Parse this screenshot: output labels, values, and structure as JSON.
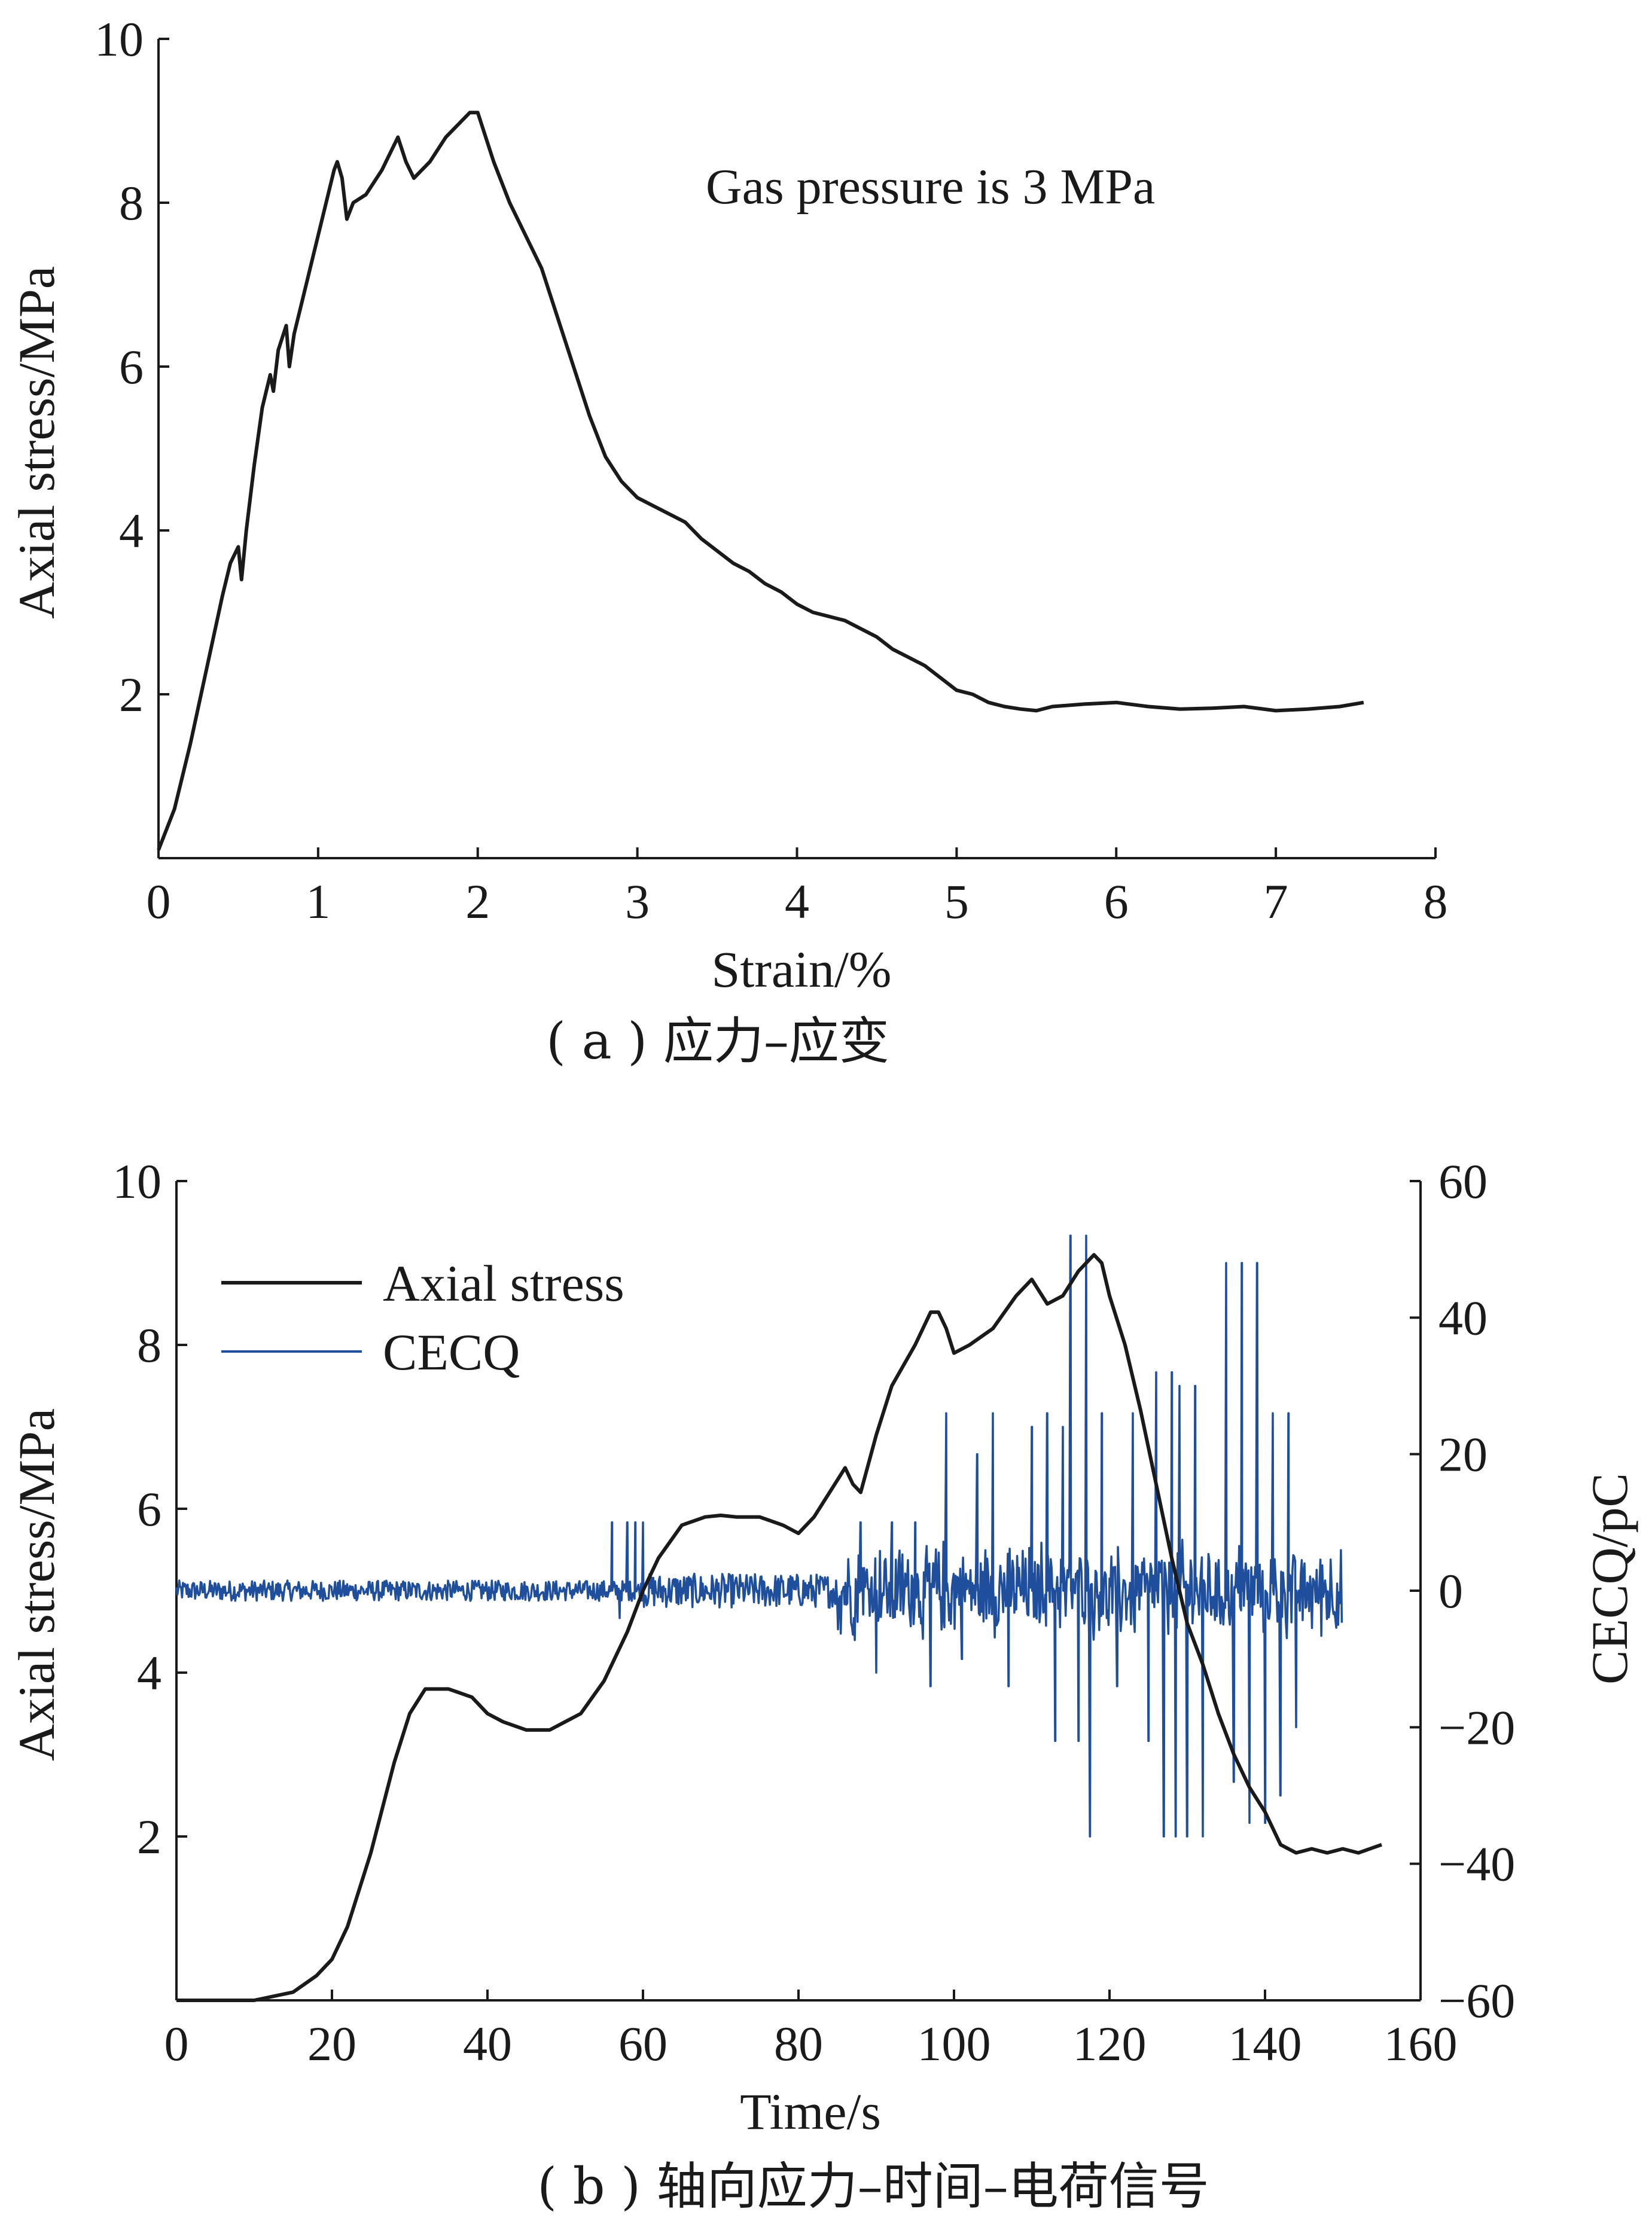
{
  "chart_data": [
    {
      "type": "line",
      "annotation": "Gas pressure is 3 MPa",
      "xlabel": "Strain/%",
      "ylabel": "Axial stress/MPa",
      "caption": "( a ) 应力–应变",
      "xlim": [
        0,
        8
      ],
      "ylim": [
        0,
        10
      ],
      "xticks": [
        "0",
        "1",
        "2",
        "3",
        "4",
        "5",
        "6",
        "7",
        "8"
      ],
      "yticks": [
        "2",
        "4",
        "6",
        "8",
        "10"
      ],
      "grid": false,
      "series": [
        {
          "color": "#1a1a1a",
          "x": [
            0.0,
            0.1,
            0.2,
            0.3,
            0.4,
            0.45,
            0.5,
            0.52,
            0.55,
            0.6,
            0.65,
            0.7,
            0.72,
            0.75,
            0.8,
            0.82,
            0.85,
            0.9,
            1.0,
            1.1,
            1.12,
            1.15,
            1.18,
            1.22,
            1.3,
            1.4,
            1.5,
            1.55,
            1.6,
            1.7,
            1.8,
            1.9,
            1.95,
            2.0,
            2.05,
            2.1,
            2.2,
            2.3,
            2.4,
            2.5,
            2.6,
            2.7,
            2.8,
            2.9,
            3.0,
            3.1,
            3.2,
            3.3,
            3.4,
            3.5,
            3.6,
            3.7,
            3.8,
            3.9,
            4.0,
            4.1,
            4.2,
            4.3,
            4.4,
            4.5,
            4.6,
            4.7,
            4.8,
            4.9,
            5.0,
            5.1,
            5.2,
            5.3,
            5.4,
            5.5,
            5.6,
            5.8,
            6.0,
            6.2,
            6.4,
            6.6,
            6.8,
            7.0,
            7.2,
            7.4,
            7.55
          ],
          "y": [
            0.1,
            0.6,
            1.4,
            2.3,
            3.2,
            3.6,
            3.8,
            3.4,
            4.0,
            4.8,
            5.5,
            5.9,
            5.7,
            6.2,
            6.5,
            6.0,
            6.4,
            6.8,
            7.6,
            8.4,
            8.5,
            8.3,
            7.8,
            8.0,
            8.1,
            8.4,
            8.8,
            8.5,
            8.3,
            8.5,
            8.8,
            9.0,
            9.1,
            9.1,
            8.8,
            8.5,
            8.0,
            7.6,
            7.2,
            6.6,
            6.0,
            5.4,
            4.9,
            4.6,
            4.4,
            4.3,
            4.2,
            4.1,
            3.9,
            3.75,
            3.6,
            3.5,
            3.35,
            3.25,
            3.1,
            3.0,
            2.95,
            2.9,
            2.8,
            2.7,
            2.55,
            2.45,
            2.35,
            2.2,
            2.05,
            2.0,
            1.9,
            1.85,
            1.82,
            1.8,
            1.85,
            1.88,
            1.9,
            1.85,
            1.82,
            1.83,
            1.85,
            1.8,
            1.82,
            1.85,
            1.9
          ]
        }
      ]
    },
    {
      "type": "line",
      "xlabel": "Time/s",
      "ylabel": "Axial stress/MPa",
      "ylabel_right": "CECQ/pC",
      "caption": "( b ) 轴向应力–时间–电荷信号",
      "xlim": [
        0,
        160
      ],
      "ylim": [
        0,
        10
      ],
      "ylim_right": [
        -60,
        60
      ],
      "xticks": [
        "0",
        "20",
        "40",
        "60",
        "80",
        "100",
        "120",
        "140",
        "160"
      ],
      "yticks": [
        "2",
        "4",
        "6",
        "8",
        "10"
      ],
      "yticks_right": [
        "−60",
        "−40",
        "−20",
        "0",
        "20",
        "40",
        "60"
      ],
      "legend_position": "top-left",
      "grid": false,
      "series": [
        {
          "name": "Axial stress",
          "axis": "left",
          "color": "#1a1a1a",
          "x": [
            0,
            10,
            15,
            18,
            20,
            22,
            25,
            28,
            30,
            32,
            35,
            38,
            40,
            42,
            45,
            48,
            50,
            52,
            55,
            58,
            60,
            62,
            65,
            68,
            70,
            72,
            75,
            78,
            80,
            82,
            84,
            86,
            87,
            88,
            90,
            92,
            95,
            97,
            98,
            99,
            100,
            102,
            105,
            108,
            110,
            112,
            114,
            116,
            118,
            119,
            120,
            122,
            124,
            126,
            128,
            130,
            132,
            134,
            136,
            138,
            140,
            142,
            144,
            146,
            148,
            150,
            152,
            155
          ],
          "y": [
            0,
            0,
            0.1,
            0.3,
            0.5,
            0.9,
            1.8,
            2.9,
            3.5,
            3.8,
            3.8,
            3.7,
            3.5,
            3.4,
            3.3,
            3.3,
            3.4,
            3.5,
            3.9,
            4.5,
            5.0,
            5.4,
            5.8,
            5.9,
            5.92,
            5.9,
            5.9,
            5.8,
            5.7,
            5.9,
            6.2,
            6.5,
            6.3,
            6.2,
            6.9,
            7.5,
            8.0,
            8.4,
            8.4,
            8.2,
            7.9,
            8.0,
            8.2,
            8.6,
            8.8,
            8.5,
            8.6,
            8.9,
            9.1,
            9.0,
            8.6,
            8.0,
            7.2,
            6.3,
            5.4,
            4.6,
            4.1,
            3.5,
            3.0,
            2.6,
            2.3,
            1.9,
            1.8,
            1.85,
            1.8,
            1.85,
            1.8,
            1.9
          ]
        },
        {
          "name": "CECQ",
          "axis": "right",
          "color": "#1f4e9c",
          "x_range": [
            0,
            150
          ],
          "noise_amplitude_baseline": 1.5,
          "noise_amplitude_active": 8,
          "active_from": 85,
          "spikes": [
            {
              "x": 56,
              "y": 10
            },
            {
              "x": 57,
              "y": -4
            },
            {
              "x": 58,
              "y": 10
            },
            {
              "x": 59,
              "y": 10
            },
            {
              "x": 60,
              "y": 10
            },
            {
              "x": 88,
              "y": 10
            },
            {
              "x": 90,
              "y": -12
            },
            {
              "x": 92,
              "y": 10
            },
            {
              "x": 95,
              "y": 10
            },
            {
              "x": 97,
              "y": -14
            },
            {
              "x": 99,
              "y": 26
            },
            {
              "x": 101,
              "y": -10
            },
            {
              "x": 103,
              "y": 20
            },
            {
              "x": 105,
              "y": 26
            },
            {
              "x": 107,
              "y": -14
            },
            {
              "x": 110,
              "y": 24
            },
            {
              "x": 112,
              "y": 26
            },
            {
              "x": 113,
              "y": -22
            },
            {
              "x": 114,
              "y": 24
            },
            {
              "x": 115,
              "y": 52
            },
            {
              "x": 116,
              "y": -22
            },
            {
              "x": 117,
              "y": 52
            },
            {
              "x": 117.5,
              "y": -36
            },
            {
              "x": 119,
              "y": 26
            },
            {
              "x": 121,
              "y": -14
            },
            {
              "x": 123,
              "y": 26
            },
            {
              "x": 125,
              "y": -22
            },
            {
              "x": 126,
              "y": 32
            },
            {
              "x": 127,
              "y": -36
            },
            {
              "x": 128,
              "y": 32
            },
            {
              "x": 128.5,
              "y": -36
            },
            {
              "x": 129,
              "y": 30
            },
            {
              "x": 130,
              "y": -36
            },
            {
              "x": 131,
              "y": 30
            },
            {
              "x": 132,
              "y": -36
            },
            {
              "x": 135,
              "y": 48
            },
            {
              "x": 136,
              "y": -28
            },
            {
              "x": 137,
              "y": 48
            },
            {
              "x": 138,
              "y": -34
            },
            {
              "x": 139,
              "y": 48
            },
            {
              "x": 140,
              "y": -34
            },
            {
              "x": 141,
              "y": 26
            },
            {
              "x": 142,
              "y": -30
            },
            {
              "x": 143,
              "y": 26
            },
            {
              "x": 144,
              "y": -20
            }
          ]
        }
      ]
    }
  ]
}
